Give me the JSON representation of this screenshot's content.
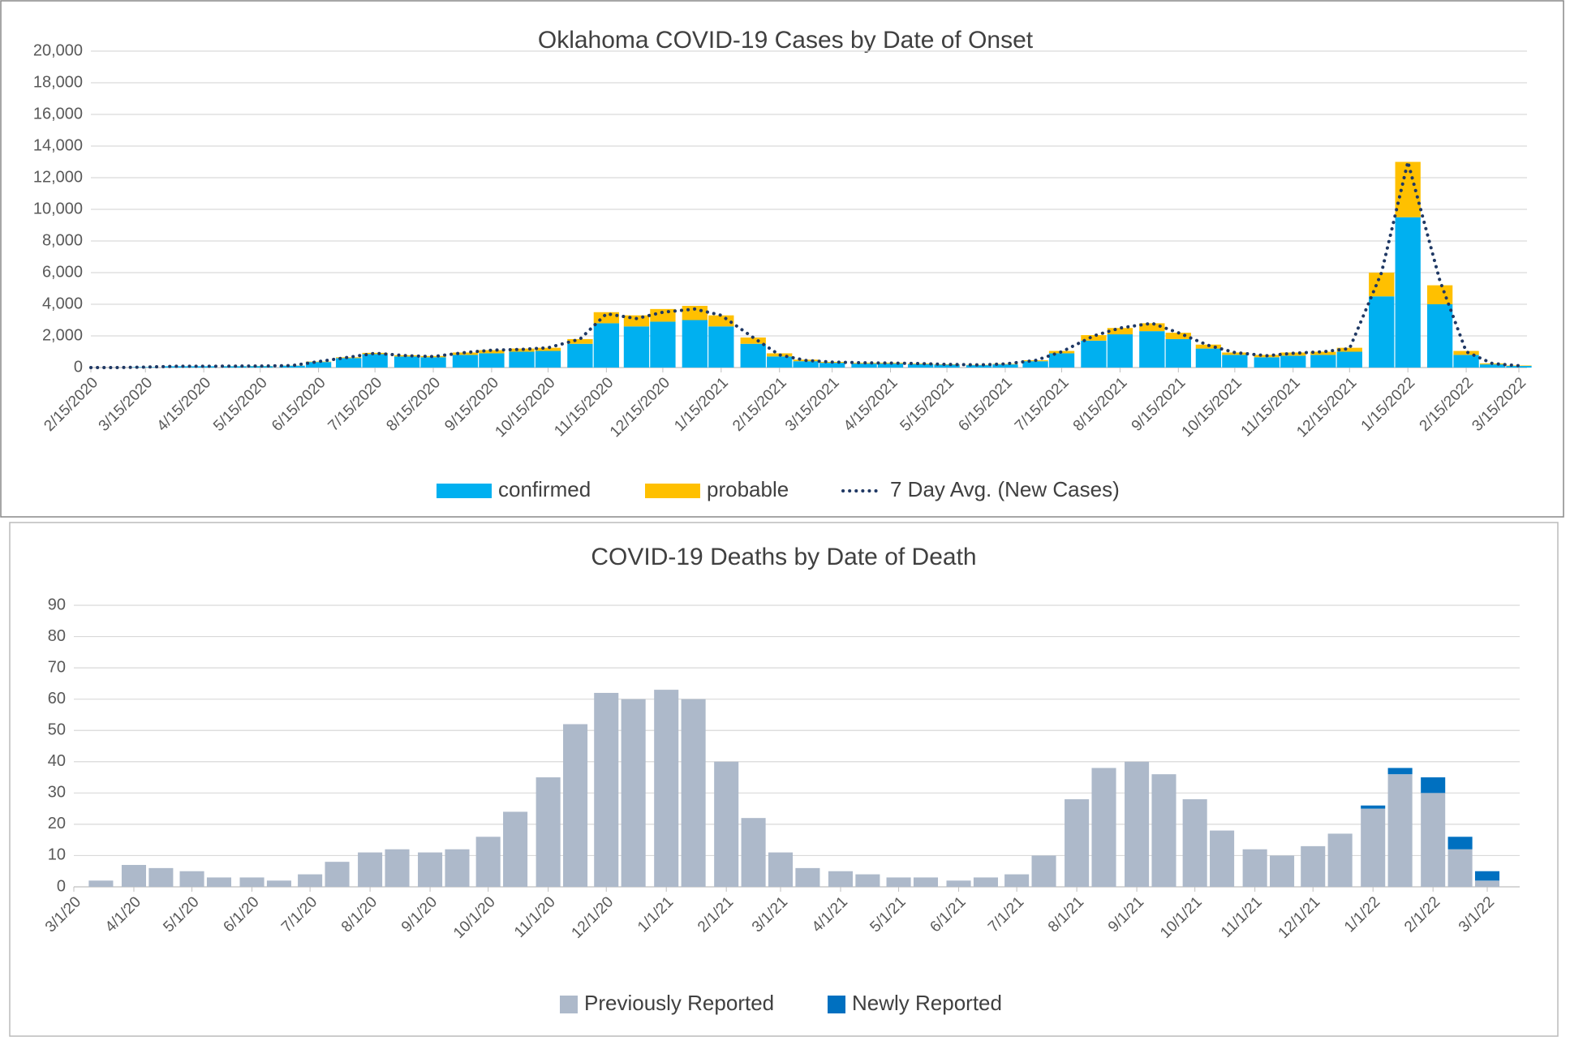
{
  "chart_data": [
    {
      "type": "bar",
      "title": "Oklahoma COVID-19 Cases by Date of Onset",
      "x": [
        "2/15/2020",
        "3/1/2020",
        "3/15/2020",
        "4/1/2020",
        "4/15/2020",
        "5/1/2020",
        "5/15/2020",
        "6/1/2020",
        "6/15/2020",
        "7/1/2020",
        "7/15/2020",
        "8/1/2020",
        "8/15/2020",
        "9/1/2020",
        "9/15/2020",
        "10/1/2020",
        "10/15/2020",
        "11/1/2020",
        "11/15/2020",
        "12/1/2020",
        "12/15/2020",
        "1/1/2021",
        "1/15/2021",
        "2/1/2021",
        "2/15/2021",
        "3/1/2021",
        "3/15/2021",
        "4/1/2021",
        "4/15/2021",
        "5/1/2021",
        "5/15/2021",
        "6/1/2021",
        "6/15/2021",
        "7/1/2021",
        "7/15/2021",
        "8/1/2021",
        "8/15/2021",
        "9/1/2021",
        "9/15/2021",
        "10/1/2021",
        "10/15/2021",
        "11/1/2021",
        "11/15/2021",
        "12/1/2021",
        "12/15/2021",
        "1/1/2022",
        "1/15/2022",
        "2/1/2022",
        "2/15/2022",
        "3/1/2022",
        "3/15/2022"
      ],
      "series": [
        {
          "name": "confirmed",
          "type": "bar",
          "color": "#00b0f0",
          "values": [
            0,
            0,
            30,
            80,
            80,
            80,
            90,
            120,
            350,
            600,
            850,
            700,
            650,
            800,
            900,
            1000,
            1050,
            1500,
            2800,
            2600,
            2900,
            3000,
            2600,
            1500,
            700,
            400,
            300,
            250,
            250,
            220,
            180,
            150,
            200,
            400,
            900,
            1700,
            2100,
            2300,
            1800,
            1200,
            800,
            650,
            750,
            800,
            1000,
            4500,
            9500,
            4000,
            800,
            200,
            100
          ]
        },
        {
          "name": "probable",
          "type": "bar",
          "color": "#ffc000",
          "values": [
            0,
            0,
            0,
            0,
            0,
            5,
            10,
            10,
            30,
            50,
            80,
            80,
            80,
            150,
            200,
            200,
            200,
            300,
            700,
            700,
            800,
            900,
            700,
            400,
            200,
            100,
            60,
            50,
            50,
            40,
            30,
            20,
            30,
            60,
            150,
            350,
            400,
            500,
            400,
            250,
            150,
            150,
            200,
            200,
            250,
            1500,
            3500,
            1200,
            250,
            60,
            30
          ]
        },
        {
          "name": "7 Day Avg. (New Cases)",
          "type": "line",
          "color": "#1f3864",
          "values": [
            0,
            0,
            30,
            80,
            80,
            90,
            100,
            130,
            380,
            650,
            900,
            750,
            700,
            950,
            1100,
            1150,
            1250,
            1800,
            3400,
            3100,
            3500,
            3700,
            3300,
            1900,
            800,
            450,
            350,
            300,
            280,
            250,
            200,
            170,
            230,
            450,
            1000,
            2000,
            2500,
            2800,
            2200,
            1400,
            950,
            750,
            900,
            1000,
            1200,
            6000,
            13000,
            5500,
            1000,
            250,
            120
          ]
        }
      ],
      "ylim": [
        0,
        20000
      ],
      "yticks": [
        0,
        {
          "value": 2000,
          "label": "2,000"
        },
        {
          "value": 4000,
          "label": "4,000"
        },
        {
          "value": 6000,
          "label": "6,000"
        },
        {
          "value": 8000,
          "label": "8,000"
        },
        {
          "value": 10000,
          "label": "10,000"
        },
        {
          "value": 12000,
          "label": "12,000"
        },
        {
          "value": 14000,
          "label": "14,000"
        },
        {
          "value": 16000,
          "label": "16,000"
        },
        {
          "value": 18000,
          "label": "18,000"
        },
        {
          "value": 20000,
          "label": "20,000"
        }
      ],
      "xticks": [
        "2/15/2020",
        "3/15/2020",
        "4/15/2020",
        "5/15/2020",
        "6/15/2020",
        "7/15/2020",
        "8/15/2020",
        "9/15/2020",
        "10/15/2020",
        "11/15/2020",
        "12/15/2020",
        "1/15/2021",
        "2/15/2021",
        "3/15/2021",
        "4/15/2021",
        "5/15/2021",
        "6/15/2021",
        "7/15/2021",
        "8/15/2021",
        "9/15/2021",
        "10/15/2021",
        "11/15/2021",
        "12/15/2021",
        "1/15/2022",
        "2/15/2022",
        "3/15/2022"
      ],
      "grid": true,
      "legend": "bottom"
    },
    {
      "type": "bar",
      "title": "COVID-19 Deaths by Date of Death",
      "x": [
        "3/1/20",
        "3/15/20",
        "4/1/20",
        "4/15/20",
        "5/1/20",
        "5/15/20",
        "6/1/20",
        "6/15/20",
        "7/1/20",
        "7/15/20",
        "8/1/20",
        "8/15/20",
        "9/1/20",
        "9/15/20",
        "10/1/20",
        "10/15/20",
        "11/1/20",
        "11/15/20",
        "12/1/20",
        "12/15/20",
        "1/1/21",
        "1/15/21",
        "2/1/21",
        "2/15/21",
        "3/1/21",
        "3/15/21",
        "4/1/21",
        "4/15/21",
        "5/1/21",
        "5/15/21",
        "6/1/21",
        "6/15/21",
        "7/1/21",
        "7/15/21",
        "8/1/21",
        "8/15/21",
        "9/1/21",
        "9/15/21",
        "10/1/21",
        "10/15/21",
        "11/1/21",
        "11/15/21",
        "12/1/21",
        "12/15/21",
        "1/1/22",
        "1/15/22",
        "2/1/22",
        "2/15/22",
        "3/1/22"
      ],
      "series": [
        {
          "name": "Previously Reported",
          "type": "bar",
          "color": "#adb9ca",
          "values": [
            0,
            2,
            7,
            6,
            5,
            3,
            3,
            2,
            4,
            8,
            11,
            12,
            11,
            12,
            16,
            24,
            35,
            52,
            62,
            60,
            63,
            60,
            40,
            22,
            11,
            6,
            5,
            4,
            3,
            3,
            2,
            3,
            4,
            10,
            28,
            38,
            40,
            36,
            28,
            18,
            12,
            10,
            13,
            17,
            25,
            36,
            30,
            12,
            2
          ]
        },
        {
          "name": "Newly Reported",
          "type": "bar",
          "color": "#0070c0",
          "values": [
            0,
            0,
            0,
            0,
            0,
            0,
            0,
            0,
            0,
            0,
            0,
            0,
            0,
            0,
            0,
            0,
            0,
            0,
            0,
            0,
            0,
            0,
            0,
            0,
            0,
            0,
            0,
            0,
            0,
            0,
            0,
            0,
            0,
            0,
            0,
            0,
            0,
            0,
            0,
            0,
            0,
            0,
            0,
            0,
            1,
            2,
            5,
            4,
            3
          ]
        }
      ],
      "ylim": [
        0,
        90
      ],
      "yticks": [
        0,
        10,
        20,
        30,
        40,
        50,
        60,
        70,
        80,
        90
      ],
      "xticks": [
        "3/1/20",
        "4/1/20",
        "5/1/20",
        "6/1/20",
        "7/1/20",
        "8/1/20",
        "9/1/20",
        "10/1/20",
        "11/1/20",
        "12/1/20",
        "1/1/21",
        "2/1/21",
        "3/1/21",
        "4/1/21",
        "5/1/21",
        "6/1/21",
        "7/1/21",
        "8/1/21",
        "9/1/21",
        "10/1/21",
        "11/1/21",
        "12/1/21",
        "1/1/22",
        "2/1/22",
        "3/1/22"
      ],
      "grid": true,
      "legend": "bottom"
    }
  ]
}
